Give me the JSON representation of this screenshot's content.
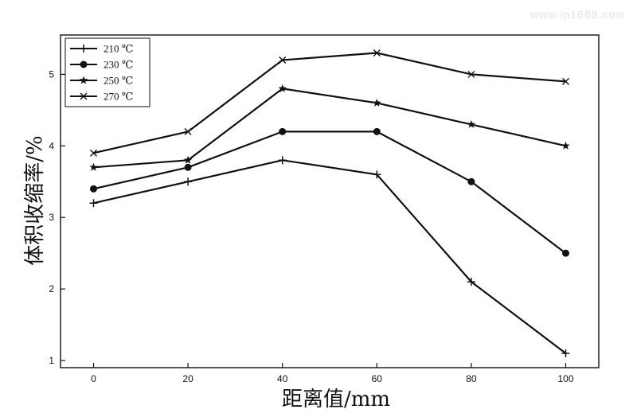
{
  "watermark": "www.ip1689.com",
  "chart_data": {
    "type": "line",
    "xlabel": "距离值/mm",
    "ylabel": "体积收缩率/%",
    "x": [
      0,
      20,
      40,
      60,
      80,
      100
    ],
    "xticks": [
      0,
      20,
      40,
      60,
      80,
      100
    ],
    "yticks": [
      1,
      2,
      3,
      4,
      5
    ],
    "xlim": [
      -7,
      107
    ],
    "ylim": [
      0.9,
      5.55
    ],
    "grid": false,
    "legend_position": "top-left",
    "series": [
      {
        "name": "210 ℃",
        "marker": "plus",
        "values": [
          3.2,
          3.5,
          3.8,
          3.6,
          2.1,
          1.1
        ]
      },
      {
        "name": "230 ℃",
        "marker": "circle",
        "values": [
          3.4,
          3.7,
          4.2,
          4.2,
          3.5,
          2.5
        ]
      },
      {
        "name": "250 ℃",
        "marker": "star",
        "values": [
          3.7,
          3.8,
          4.8,
          4.6,
          4.3,
          4.0
        ]
      },
      {
        "name": "270 ℃",
        "marker": "cross",
        "values": [
          3.9,
          4.2,
          5.2,
          5.3,
          5.0,
          4.9
        ]
      }
    ],
    "colors": {
      "line": "#111111",
      "axis": "#111111"
    }
  }
}
